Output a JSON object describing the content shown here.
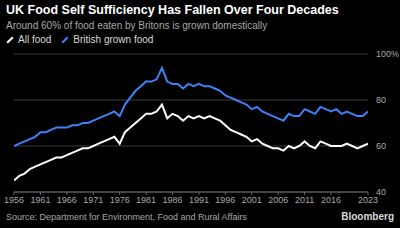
{
  "chart_data": {
    "type": "line",
    "title": "UK Food Self Sufficiency Has Fallen Over Four Decades",
    "subtitle": "Around 60% of food eaten by Britons is grown domestically",
    "source": "Source: Department for Environment, Food and Rural Affairs",
    "credit": "Bloomberg",
    "legend": "top",
    "grid": true,
    "x": [
      1956,
      1957,
      1958,
      1959,
      1960,
      1961,
      1962,
      1963,
      1964,
      1965,
      1966,
      1967,
      1968,
      1969,
      1970,
      1971,
      1972,
      1973,
      1974,
      1975,
      1976,
      1977,
      1978,
      1979,
      1980,
      1981,
      1982,
      1983,
      1984,
      1985,
      1986,
      1987,
      1988,
      1989,
      1990,
      1991,
      1992,
      1993,
      1994,
      1995,
      1996,
      1997,
      1998,
      1999,
      2000,
      2001,
      2002,
      2003,
      2004,
      2005,
      2006,
      2007,
      2008,
      2009,
      2010,
      2011,
      2012,
      2013,
      2014,
      2015,
      2016,
      2017,
      2018,
      2019,
      2020,
      2021,
      2022,
      2023
    ],
    "xlim": [
      1956,
      2023
    ],
    "xticks": [
      1956,
      1961,
      1966,
      1971,
      1976,
      1981,
      1986,
      1991,
      1996,
      2001,
      2006,
      2011,
      2016,
      2023
    ],
    "ylim": [
      40,
      100
    ],
    "yticks": [
      40,
      60,
      80,
      {
        "value": 100,
        "label": "100%"
      }
    ],
    "series": [
      {
        "name": "All food",
        "color": "#ffffff",
        "values": [
          45,
          47,
          48,
          50,
          51,
          52,
          53,
          54,
          55,
          55,
          56,
          57,
          58,
          59,
          59,
          60,
          61,
          62,
          63,
          64,
          61,
          66,
          68,
          70,
          72,
          74,
          74,
          75,
          78,
          72,
          74,
          73,
          71,
          73,
          72,
          73,
          72,
          73,
          72,
          71,
          69,
          67,
          66,
          65,
          64,
          62,
          63,
          61,
          60,
          59,
          59,
          58,
          60,
          59,
          60,
          62,
          60,
          59,
          62,
          61,
          60,
          60,
          60,
          61,
          60,
          59,
          60,
          61
        ]
      },
      {
        "name": "British grown food",
        "color": "#3f82f7",
        "values": [
          60,
          61,
          62,
          63,
          64,
          66,
          66,
          67,
          68,
          68,
          68,
          69,
          69,
          70,
          70,
          71,
          72,
          73,
          74,
          75,
          73,
          78,
          81,
          84,
          86,
          88,
          88,
          89,
          94,
          88,
          87,
          87,
          85,
          87,
          86,
          87,
          86,
          86,
          85,
          84,
          82,
          81,
          80,
          79,
          78,
          76,
          77,
          75,
          74,
          73,
          72,
          71,
          74,
          73,
          73,
          76,
          75,
          74,
          77,
          76,
          75,
          76,
          74,
          75,
          74,
          73,
          73,
          75
        ]
      }
    ]
  }
}
